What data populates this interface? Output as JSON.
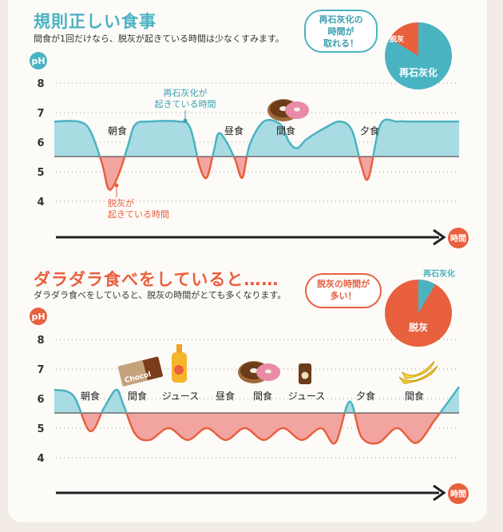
{
  "section1": {
    "title": "規則正しい食事",
    "subtitle": "間食が1回だけなら、脱灰が起きている時間は少なくすみます。",
    "bubble_lines": [
      "再石灰化の",
      "時間が",
      "取れる！"
    ],
    "pie_labels": {
      "small": "脱灰",
      "large": "再石灰化"
    },
    "annotation_remin": [
      "再石灰化が",
      "起きている時間"
    ],
    "annotation_demin": [
      "脱灰が",
      "起きている時間"
    ],
    "time_label": "時間"
  },
  "section2": {
    "title": "ダラダラ食べをしていると……",
    "subtitle": "ダラダラ食べをしていると、脱灰の時間がとても多くなります。",
    "bubble_lines": [
      "脱灰の時間が",
      "多い！"
    ],
    "pie_labels": {
      "small": "再石灰化",
      "large": "脱灰"
    },
    "time_label": "時間",
    "chocolate_label": "Chocol"
  },
  "colors": {
    "teal": "#4ab3c2",
    "teal_fill": "#a9dbe3",
    "orange": "#e8603e",
    "pink_fill": "#f2a5a0",
    "dark": "#333333"
  },
  "chart_data": [
    {
      "type": "area",
      "ylabel": "pH",
      "ylim": [
        3.5,
        8.5
      ],
      "yticks": [
        8,
        7,
        6,
        5,
        4
      ],
      "threshold": 5.5,
      "xlabel": "時間",
      "meals": [
        "朝食",
        "昼食",
        "間食",
        "夕食"
      ],
      "series": [
        {
          "x": [
            0,
            0.5,
            0.75,
            1.0,
            1.15,
            1.35,
            1.55,
            1.7,
            2.0,
            2.6,
            2.85,
            3.05,
            3.2,
            3.35,
            3.45,
            3.62,
            3.8,
            3.95,
            4.1,
            4.4,
            4.75,
            4.93,
            5.1,
            5.3,
            5.7,
            6.0,
            6.25,
            6.45,
            6.6,
            6.85,
            7.2,
            7.5,
            8.5
          ],
          "values": [
            6.7,
            6.7,
            6.4,
            5.3,
            4.4,
            4.9,
            5.9,
            6.6,
            6.7,
            6.7,
            6.5,
            5.2,
            4.8,
            5.7,
            6.3,
            6.0,
            5.4,
            4.8,
            5.9,
            6.7,
            6.6,
            6.0,
            5.8,
            6.1,
            6.5,
            6.7,
            6.4,
            5.2,
            4.8,
            6.6,
            6.7,
            6.7,
            6.7
          ]
        }
      ]
    },
    {
      "type": "area",
      "ylabel": "pH",
      "ylim": [
        3.5,
        8.5
      ],
      "yticks": [
        8,
        7,
        6,
        5,
        4
      ],
      "threshold": 5.5,
      "xlabel": "時間",
      "meals": [
        "朝食",
        "間食",
        "ジュース",
        "昼食",
        "間食",
        "ジュース",
        "夕食",
        "間食"
      ],
      "series": [
        {
          "x": [
            0,
            0.4,
            0.75,
            1.05,
            1.3,
            1.45,
            1.7,
            2.0,
            2.4,
            2.8,
            3.2,
            3.6,
            4.0,
            4.4,
            4.8,
            5.2,
            5.6,
            5.9,
            6.2,
            6.45,
            6.8,
            7.2,
            7.6,
            8.0,
            8.5
          ],
          "values": [
            6.3,
            6.1,
            4.9,
            5.7,
            6.3,
            5.8,
            4.8,
            4.6,
            5.0,
            4.6,
            5.0,
            4.6,
            5.0,
            4.6,
            5.0,
            4.6,
            5.0,
            4.5,
            5.9,
            4.7,
            4.5,
            5.0,
            4.5,
            5.3,
            6.4
          ]
        }
      ]
    }
  ]
}
